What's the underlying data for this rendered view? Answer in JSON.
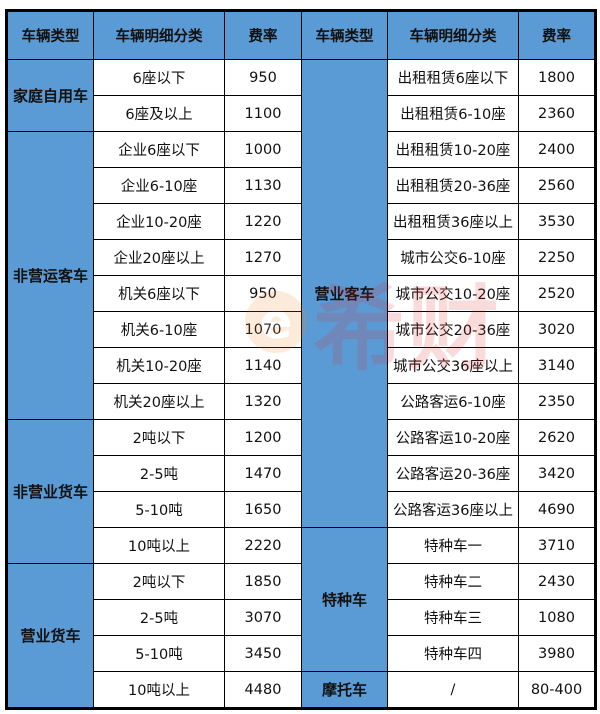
{
  "headers": [
    "车辆类型",
    "车辆明细分类",
    "费率",
    "车辆类型",
    "车辆明细分类",
    "费率"
  ],
  "left_groups": [
    {
      "type": "家庭自用车",
      "rows": [
        [
          "6座以下",
          "950"
        ],
        [
          "6座及以上",
          "1100"
        ]
      ]
    },
    {
      "type": "非营运客车",
      "rows": [
        [
          "企业6座以下",
          "1000"
        ],
        [
          "企业6-10座",
          "1130"
        ],
        [
          "企业10-20座",
          "1220"
        ],
        [
          "企业20座以上",
          "1270"
        ],
        [
          "机关6座以下",
          "950"
        ],
        [
          "机关6-10座",
          "1070"
        ],
        [
          "机关10-20座",
          "1140"
        ],
        [
          "机关20座以上",
          "1320"
        ]
      ]
    },
    {
      "type": "非营业货车",
      "rows": [
        [
          "2吨以下",
          "1200"
        ],
        [
          "2-5吨",
          "1470"
        ],
        [
          "5-10吨",
          "1650"
        ],
        [
          "10吨以上",
          "2220"
        ]
      ]
    },
    {
      "type": "营业货车",
      "rows": [
        [
          "2吨以下",
          "1850"
        ],
        [
          "2-5吨",
          "3070"
        ],
        [
          "5-10吨",
          "3450"
        ],
        [
          "10吨以上",
          "4480"
        ]
      ]
    }
  ],
  "right_groups": [
    {
      "type": "营业客车",
      "rows": [
        [
          "出租租赁6座以下",
          "1800"
        ],
        [
          "出租租赁6-10座",
          "2360"
        ],
        [
          "出租租赁10-20座",
          "2400"
        ],
        [
          "出租租赁20-36座",
          "2560"
        ],
        [
          "出租租赁36座以上",
          "3530"
        ],
        [
          "城市公交6-10座",
          "2250"
        ],
        [
          "城市公交10-20座",
          "2520"
        ],
        [
          "城市公交20-36座",
          "3020"
        ],
        [
          "城市公交36座以上",
          "3140"
        ],
        [
          "公路客运6-10座",
          "2350"
        ],
        [
          "公路客运10-20座",
          "2620"
        ],
        [
          "公路客运20-36座",
          "3420"
        ],
        [
          "公路客运36座以上",
          "4690"
        ]
      ]
    },
    {
      "type": "特种车",
      "rows": [
        [
          "特种车一",
          "3710"
        ],
        [
          "特种车二",
          "2430"
        ],
        [
          "特种车三",
          "1080"
        ],
        [
          "特种车四",
          "3980"
        ]
      ]
    },
    {
      "type": "摩托车",
      "rows": [
        [
          "/",
          "80-400"
        ]
      ]
    }
  ],
  "watermark": {
    "mark": "e",
    "text": "希财"
  },
  "colors": {
    "header_bg": "#5b9bd5",
    "watermark_orange": "#f08a24",
    "watermark_red": "#e0262e"
  }
}
